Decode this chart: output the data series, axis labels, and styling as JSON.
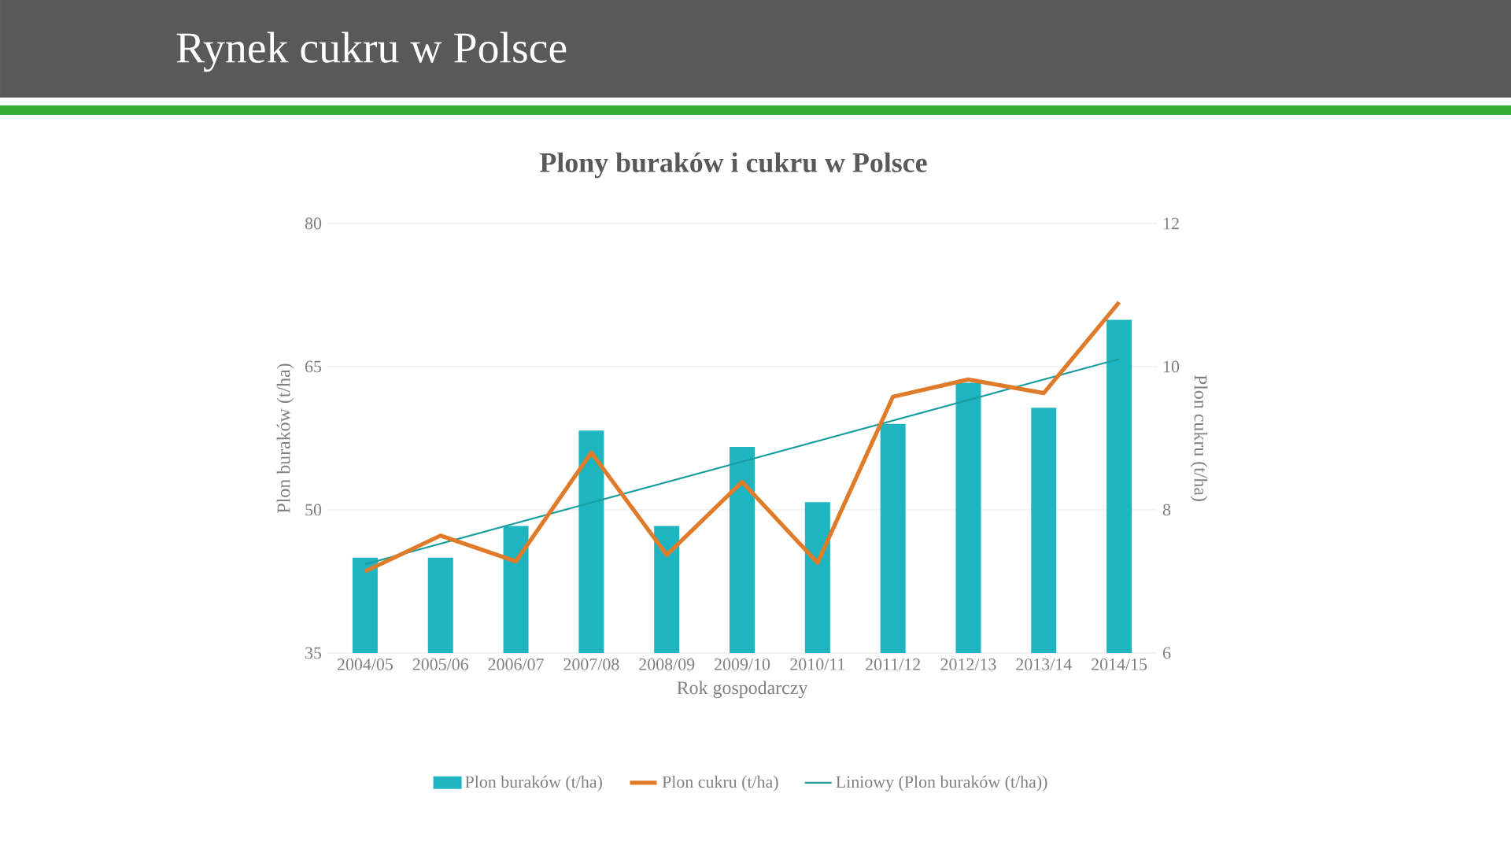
{
  "chart_data": {
    "type": "bar",
    "title": "Rynek cukru w Polsce",
    "subtitle": "Plony buraków i cukru w Polsce",
    "xlabel": "Rok gospodarczy",
    "ylabel": "Plon buraków (t/ha)",
    "y2label": "Plon cukru (t/ha)",
    "categories": [
      "2004/05",
      "2005/06",
      "2006/07",
      "2007/08",
      "2008/09",
      "2009/10",
      "2010/11",
      "2011/12",
      "2012/13",
      "2013/14",
      "2014/15"
    ],
    "series": [
      {
        "name": "Plon buraków (t/ha)",
        "color": "#1fb5c0",
        "values": [
          45,
          45,
          48.3,
          58.3,
          48.3,
          56.6,
          50.8,
          59,
          63.3,
          60.7,
          69.9
        ]
      },
      {
        "name": "Plon cukru (t/ha)",
        "type": "line",
        "axis": "y2",
        "color": "#e07b2a",
        "values": [
          7.14,
          7.64,
          7.28,
          8.8,
          7.37,
          8.39,
          7.26,
          9.58,
          9.82,
          9.63,
          10.9
        ]
      },
      {
        "name": "Liniowy (Plon buraków (t/ha))",
        "type": "line",
        "color": "#1a9e9e",
        "x": [
          "2004/05",
          "2014/15"
        ],
        "values": [
          44.3,
          65.8
        ]
      }
    ],
    "ylim": [
      35,
      80
    ],
    "yticks": [
      35,
      50,
      65,
      80
    ],
    "y2lim": [
      6,
      12
    ],
    "y2ticks": [
      6,
      8,
      10,
      12
    ],
    "grid": "y",
    "legend": "bottom"
  }
}
